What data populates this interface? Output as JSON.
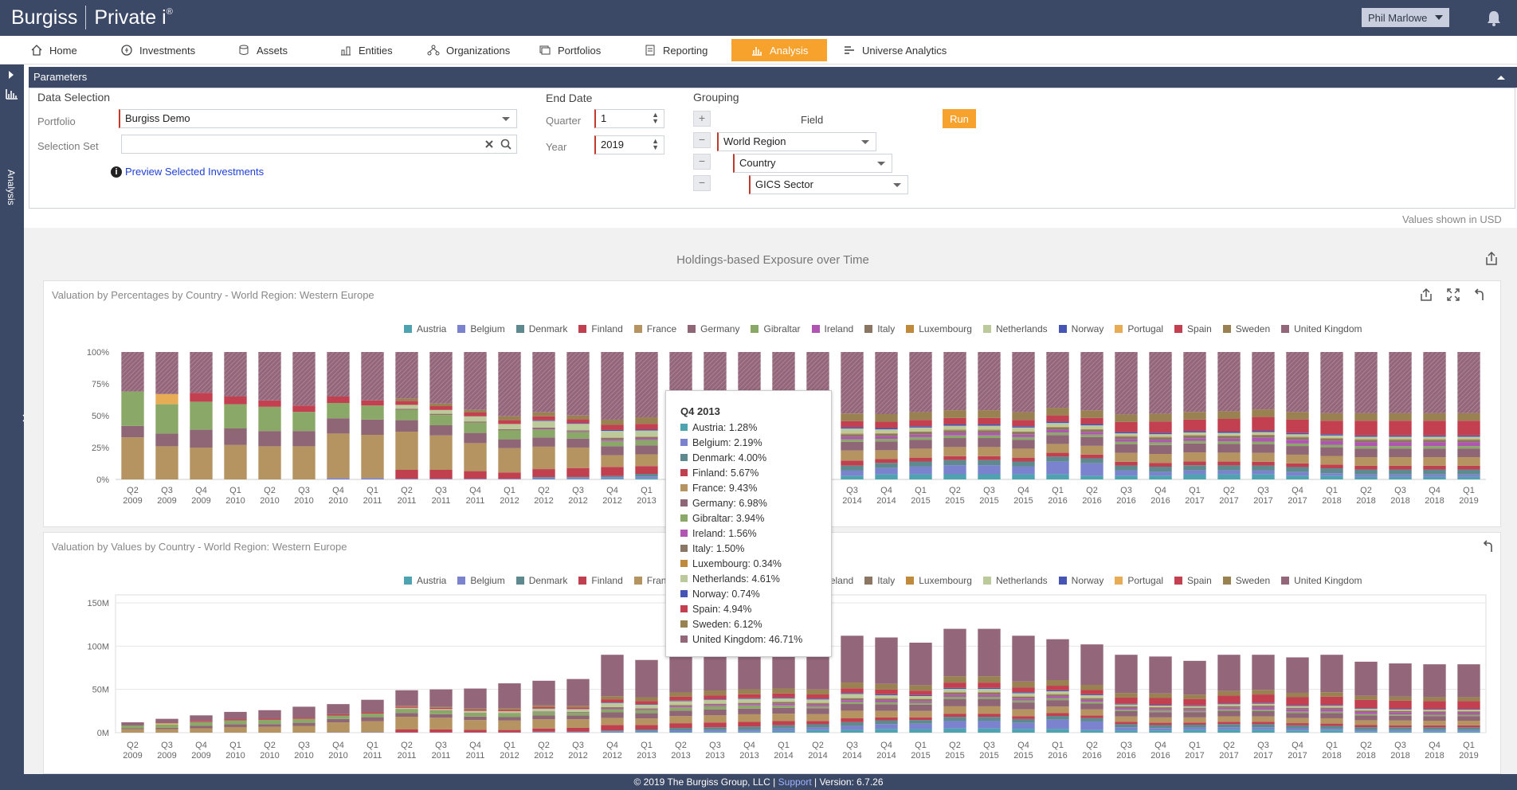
{
  "app": {
    "logo_left": "Burgiss",
    "logo_right": "Private i",
    "logo_mark": "®",
    "user": "Phil Marlowe"
  },
  "nav": [
    {
      "label": "Home",
      "icon": "home-icon",
      "active": false
    },
    {
      "label": "Investments",
      "icon": "investments-icon",
      "active": false
    },
    {
      "label": "Assets",
      "icon": "assets-icon",
      "active": false
    },
    {
      "label": "Entities",
      "icon": "entities-icon",
      "active": false
    },
    {
      "label": "Organizations",
      "icon": "organizations-icon",
      "active": false
    },
    {
      "label": "Portfolios",
      "icon": "portfolios-icon",
      "active": false
    },
    {
      "label": "Reporting",
      "icon": "reporting-icon",
      "active": false
    },
    {
      "label": "Analysis",
      "icon": "analysis-icon",
      "active": true
    },
    {
      "label": "Universe Analytics",
      "icon": "universe-analytics-icon",
      "active": false
    }
  ],
  "rail": {
    "label": "Analysis"
  },
  "params": {
    "header": "Parameters",
    "data_selection": "Data Selection",
    "portfolio_label": "Portfolio",
    "portfolio_value": "Burgiss Demo",
    "selection_set_label": "Selection Set",
    "selection_set_value": "",
    "preview_link": "Preview Selected Investments",
    "end_date": "End Date",
    "quarter_label": "Quarter",
    "quarter_value": "1",
    "year_label": "Year",
    "year_value": "2019",
    "grouping": "Grouping",
    "field_header": "Field",
    "group_fields": [
      "World Region",
      "Country",
      "GICS Sector"
    ],
    "run": "Run"
  },
  "values_note": "Values shown in USD",
  "main_title": "Holdings-based Exposure over Time",
  "colors": {
    "Austria": "#4ea3b0",
    "Belgium": "#7b83cf",
    "Denmark": "#5e8a8f",
    "Finland": "#c0404f",
    "France": "#b69462",
    "Germany": "#8e6676",
    "Gibraltar": "#8aa868",
    "Ireland": "#b056b2",
    "Italy": "#8b7664",
    "Luxembourg": "#c08a3d",
    "Netherlands": "#bcc99a",
    "Norway": "#4654b5",
    "Portugal": "#e8ac55",
    "Spain": "#c24050",
    "Sweden": "#9a8152",
    "United Kingdom": "#94667a"
  },
  "legend": [
    "Austria",
    "Belgium",
    "Denmark",
    "Finland",
    "France",
    "Germany",
    "Gibraltar",
    "Ireland",
    "Italy",
    "Luxembourg",
    "Netherlands",
    "Norway",
    "Portugal",
    "Spain",
    "Sweden",
    "United Kingdom"
  ],
  "chart_data": [
    {
      "type": "bar",
      "stacked": "percent",
      "title": "Valuation by Percentages by Country - World Region: Western Europe",
      "categories": [
        "Q2 2009",
        "Q3 2009",
        "Q4 2009",
        "Q1 2010",
        "Q2 2010",
        "Q3 2010",
        "Q4 2010",
        "Q1 2011",
        "Q2 2011",
        "Q3 2011",
        "Q4 2011",
        "Q1 2012",
        "Q2 2012",
        "Q3 2012",
        "Q4 2012",
        "Q1 2013",
        "Q2 2013",
        "Q3 2013",
        "Q4 2013",
        "Q1 2014",
        "Q2 2014",
        "Q3 2014",
        "Q4 2014",
        "Q1 2015",
        "Q2 2015",
        "Q3 2015",
        "Q4 2015",
        "Q1 2016",
        "Q2 2016",
        "Q3 2016",
        "Q4 2016",
        "Q1 2017",
        "Q2 2017",
        "Q3 2017",
        "Q4 2017",
        "Q1 2018",
        "Q2 2018",
        "Q3 2018",
        "Q4 2018",
        "Q1 2019"
      ],
      "yticks": [
        "0%",
        "25%",
        "50%",
        "75%",
        "100%"
      ],
      "series": [
        {
          "name": "Austria",
          "values": [
            0,
            0,
            0,
            0,
            0,
            0,
            0,
            0,
            0,
            0,
            0,
            0,
            0.3,
            0.4,
            0.5,
            0.8,
            1,
            1.1,
            1.3,
            2,
            3,
            3,
            4,
            4,
            4,
            4,
            4,
            4,
            3,
            3,
            3,
            4,
            4,
            4,
            3,
            3,
            2,
            2,
            2,
            2
          ]
        },
        {
          "name": "Belgium",
          "values": [
            0,
            0,
            0,
            0,
            0,
            0,
            1,
            1,
            0.5,
            0.5,
            0.5,
            0.5,
            1,
            1,
            1.2,
            1.5,
            2,
            2,
            2.2,
            3,
            3,
            4,
            5,
            6,
            7,
            7,
            6,
            10,
            10,
            4,
            3,
            3,
            3,
            3,
            3,
            2,
            2,
            2,
            2,
            2
          ]
        },
        {
          "name": "Denmark",
          "values": [
            0,
            0,
            0,
            0,
            0,
            0,
            0,
            0,
            0,
            0,
            0,
            0,
            0.5,
            0.5,
            1,
            2,
            3,
            3.5,
            4,
            4,
            4,
            4,
            4,
            4,
            4,
            4,
            4,
            4,
            4,
            4,
            4,
            4,
            4,
            4,
            4,
            4,
            4,
            4,
            4,
            4
          ]
        },
        {
          "name": "Finland",
          "values": [
            0,
            0,
            0,
            0,
            0,
            0,
            0,
            0,
            7,
            7,
            6,
            5,
            6,
            7,
            7,
            6,
            6,
            6,
            5.7,
            5,
            4,
            4,
            3,
            3,
            3,
            3,
            3,
            3,
            3,
            3,
            3,
            3,
            3,
            3,
            3,
            3,
            3,
            3,
            3,
            3
          ]
        },
        {
          "name": "France",
          "values": [
            33,
            26,
            25,
            27,
            26,
            26,
            35,
            34,
            30,
            27,
            22,
            19,
            17,
            16,
            9,
            9,
            9,
            9,
            9.4,
            9,
            8,
            8,
            7,
            7,
            7,
            7,
            7,
            7,
            7,
            7,
            7,
            7,
            7,
            7,
            7,
            7,
            7,
            7,
            7,
            7
          ]
        },
        {
          "name": "Germany",
          "values": [
            9,
            10,
            14,
            13,
            12,
            12,
            12,
            12,
            9,
            8,
            8,
            7,
            7,
            7,
            7,
            7,
            7,
            7,
            7,
            7,
            7,
            7,
            7,
            7,
            7,
            7,
            7,
            7,
            7,
            7,
            7,
            7,
            7,
            7,
            7,
            7,
            7,
            7,
            7,
            7
          ]
        },
        {
          "name": "Gibraltar",
          "values": [
            27,
            23,
            22,
            19,
            19,
            15,
            12,
            11,
            8,
            8,
            8,
            7,
            6,
            5,
            4,
            4,
            4,
            4,
            3.9,
            3,
            2,
            2,
            2,
            2,
            2,
            2,
            2,
            2,
            2,
            2,
            2,
            2,
            2,
            2,
            2,
            2,
            2,
            2,
            2,
            2
          ]
        },
        {
          "name": "Ireland",
          "values": [
            0,
            0,
            0,
            0,
            0,
            0,
            0,
            0,
            0,
            0,
            0,
            0,
            0.5,
            0.5,
            1,
            1,
            1.5,
            1.5,
            1.6,
            2,
            2,
            2,
            2,
            2,
            2,
            2,
            2,
            2,
            2,
            2,
            2,
            2,
            2,
            3,
            3,
            3,
            3,
            3,
            3,
            3
          ]
        },
        {
          "name": "Italy",
          "values": [
            0,
            0,
            0,
            0,
            0,
            0,
            0,
            0,
            1,
            1,
            1,
            1,
            1,
            1,
            1.5,
            1.5,
            1.5,
            1.5,
            1.5,
            2,
            2,
            2,
            2,
            2,
            2,
            2,
            2,
            2,
            2,
            2,
            2,
            2,
            2,
            2,
            2,
            2,
            2,
            2,
            2,
            2
          ]
        },
        {
          "name": "Luxembourg",
          "values": [
            0,
            0,
            0,
            0,
            0,
            0,
            0,
            0,
            0,
            0,
            0,
            0,
            0,
            0,
            0.3,
            0.3,
            0.3,
            0.3,
            0.3,
            0.5,
            0.5,
            0.5,
            0.5,
            0.5,
            0.5,
            0.5,
            0.5,
            0.5,
            0.5,
            0.5,
            0.5,
            0.5,
            0.5,
            0.5,
            0.5,
            0.5,
            0.5,
            0.5,
            0.5,
            0.5
          ]
        },
        {
          "name": "Netherlands",
          "values": [
            0,
            0,
            0,
            0,
            0,
            0,
            0,
            0,
            3,
            3,
            4,
            4,
            5,
            5,
            5,
            4.6,
            4.6,
            4.6,
            4.6,
            4,
            4,
            4,
            3,
            3,
            3,
            3,
            3,
            3,
            3,
            2,
            2,
            2,
            2,
            2,
            2,
            2,
            2,
            2,
            2,
            2
          ]
        },
        {
          "name": "Norway",
          "values": [
            0,
            0,
            0,
            0,
            0,
            0,
            0,
            0,
            0,
            0,
            0,
            0,
            0.5,
            0.5,
            0.7,
            0.7,
            0.7,
            0.7,
            0.74,
            1,
            1,
            1,
            1,
            1,
            1,
            1,
            1,
            1,
            1,
            1,
            1,
            1,
            1,
            1,
            1,
            1,
            1,
            1,
            1,
            1
          ]
        },
        {
          "name": "Portugal",
          "values": [
            0,
            8,
            0,
            0,
            0,
            0,
            0,
            0,
            0,
            0,
            0,
            0,
            0,
            0,
            0,
            0,
            0,
            0,
            0,
            0,
            0,
            0,
            0,
            0,
            0,
            0,
            0,
            0,
            0,
            0,
            0,
            0,
            0,
            0,
            0,
            0,
            0,
            0,
            0,
            0
          ]
        },
        {
          "name": "Spain",
          "values": [
            0,
            0,
            7,
            6,
            5,
            5,
            5,
            4,
            3,
            3,
            3,
            3,
            3,
            3,
            4,
            4.5,
            4.9,
            4.9,
            4.94,
            5,
            5,
            5,
            5,
            5,
            5,
            5,
            5,
            5,
            5,
            8,
            9,
            9,
            10,
            11,
            11,
            11,
            12,
            12,
            12,
            12
          ]
        },
        {
          "name": "Sweden",
          "values": [
            0,
            0,
            0,
            0,
            0,
            0,
            0,
            0,
            2,
            2,
            2,
            3,
            3,
            3,
            4,
            5,
            5.5,
            6,
            6.12,
            6,
            6,
            6,
            6,
            6,
            6,
            6,
            6,
            6,
            6,
            6,
            6,
            6,
            6,
            6,
            6,
            6,
            6,
            6,
            6,
            6
          ]
        },
        {
          "name": "United Kingdom",
          "values": [
            31,
            33,
            32,
            35,
            38,
            42,
            35,
            38,
            36.5,
            40.5,
            45.5,
            50.5,
            45.7,
            49.6,
            52.3,
            50.4,
            47.7,
            46.2,
            46.71,
            47,
            49.5,
            49,
            49,
            47,
            45,
            45,
            47,
            44,
            47,
            49.5,
            48.5,
            46.5,
            46.5,
            45.5,
            48.5,
            49.5,
            49.5,
            49.5,
            49.5,
            49.5
          ]
        }
      ]
    },
    {
      "type": "bar",
      "stacked": "values",
      "title": "Valuation by Values by Country - World Region: Western Europe",
      "yticks": [
        "0M",
        "50M",
        "100M",
        "150M"
      ],
      "ylim": [
        0,
        150
      ],
      "totals": [
        12,
        16,
        20,
        24,
        26,
        30,
        33,
        38,
        49,
        50,
        51,
        57,
        60,
        62,
        90,
        84,
        90,
        92,
        94,
        96,
        98,
        112,
        110,
        104,
        120,
        120,
        112,
        108,
        102,
        90,
        88,
        83,
        90,
        90,
        87,
        90,
        82,
        80,
        79,
        79
      ]
    }
  ],
  "tooltip": {
    "title": "Q4 2013",
    "rows": [
      {
        "name": "Austria",
        "value": "1.28%"
      },
      {
        "name": "Belgium",
        "value": "2.19%"
      },
      {
        "name": "Denmark",
        "value": "4.00%"
      },
      {
        "name": "Finland",
        "value": "5.67%"
      },
      {
        "name": "France",
        "value": "9.43%"
      },
      {
        "name": "Germany",
        "value": "6.98%"
      },
      {
        "name": "Gibraltar",
        "value": "3.94%"
      },
      {
        "name": "Ireland",
        "value": "1.56%"
      },
      {
        "name": "Italy",
        "value": "1.50%"
      },
      {
        "name": "Luxembourg",
        "value": "0.34%"
      },
      {
        "name": "Netherlands",
        "value": "4.61%"
      },
      {
        "name": "Norway",
        "value": "0.74%"
      },
      {
        "name": "Spain",
        "value": "4.94%"
      },
      {
        "name": "Sweden",
        "value": "6.12%"
      },
      {
        "name": "United Kingdom",
        "value": "46.71%"
      }
    ]
  },
  "footer": {
    "copyright": "© 2019 The Burgiss Group, LLC |",
    "support": "Support",
    "version": "| Version: 6.7.26"
  }
}
